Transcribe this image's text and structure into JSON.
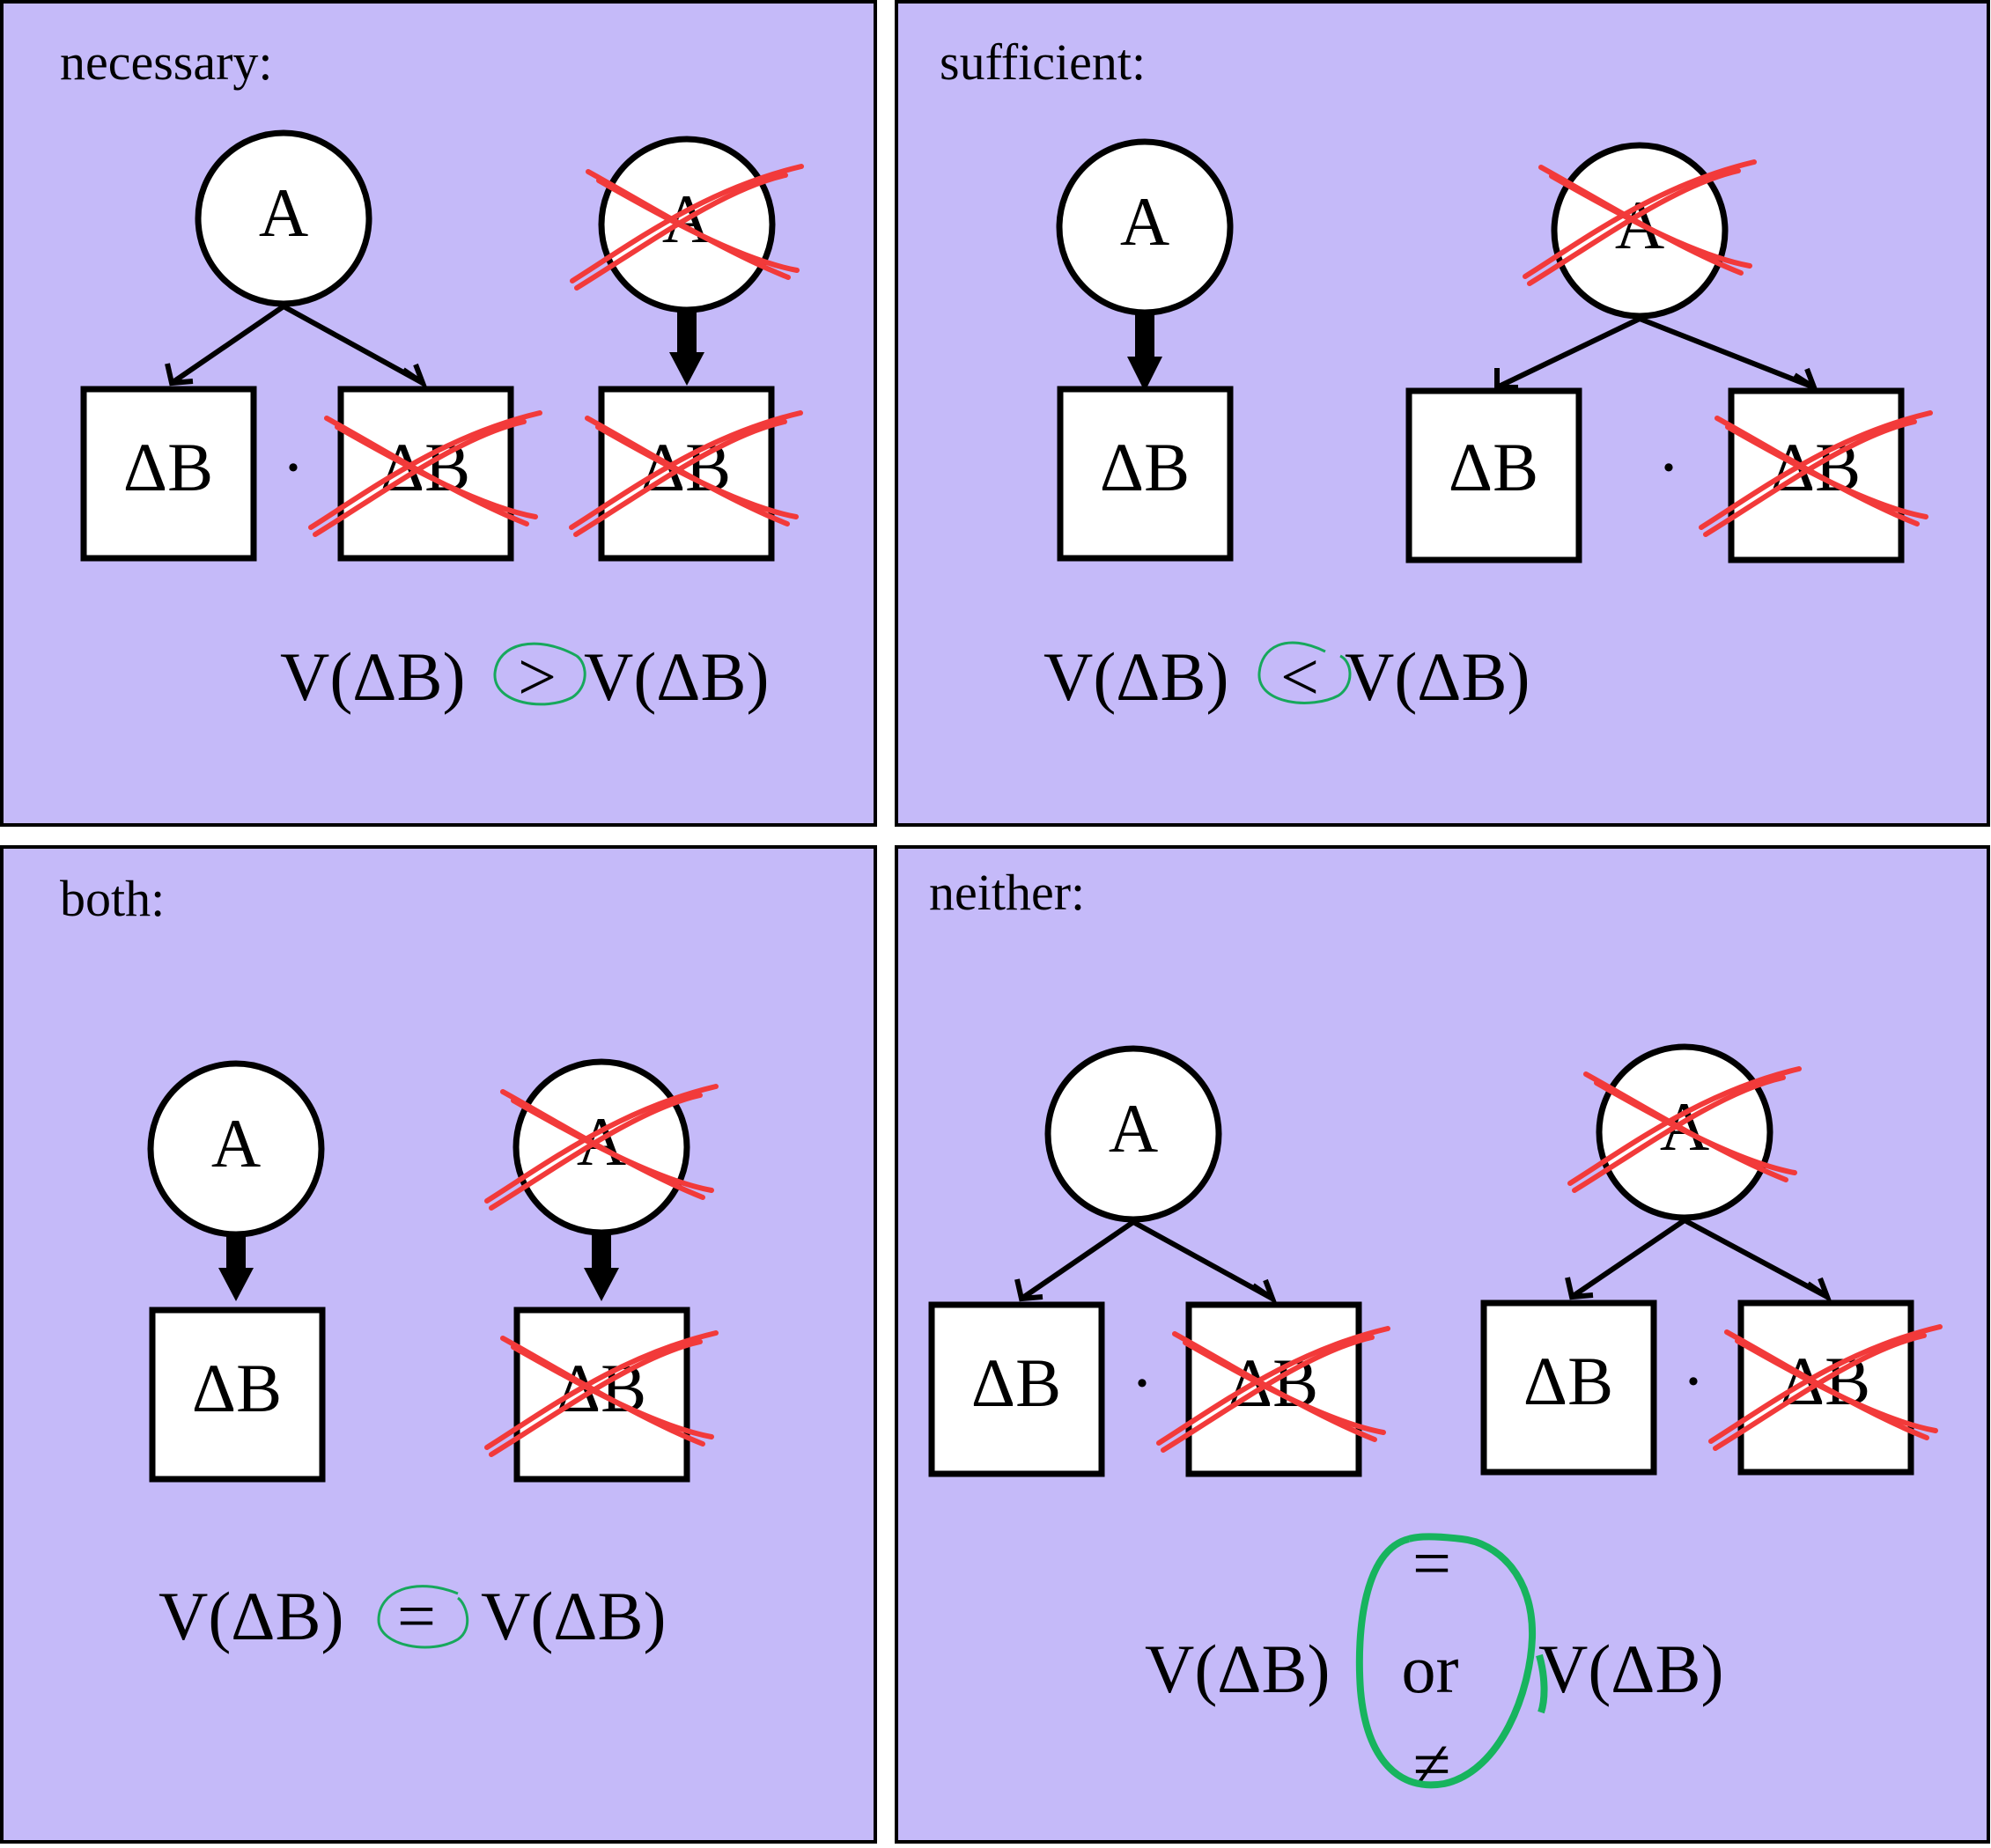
{
  "panels": [
    {
      "id": "necessary",
      "title": "necessary:"
    },
    {
      "id": "sufficient",
      "title": "sufficient:"
    },
    {
      "id": "both",
      "title": "both:"
    },
    {
      "id": "neither",
      "title": "neither:"
    }
  ],
  "labels": {
    "node": "A",
    "box": "ΔB",
    "dot": "·",
    "value": "V(ΔB)"
  },
  "relations": {
    "necessary": ">",
    "sufficient": "<",
    "both": "=",
    "neither_top": "=",
    "neither_mid": "or",
    "neither_bottom": "≠"
  },
  "colors": {
    "panel_fill": "#c5baf9",
    "panel_border": "#000000",
    "cross": "#f23a3a",
    "highlight": "#17a85c"
  }
}
